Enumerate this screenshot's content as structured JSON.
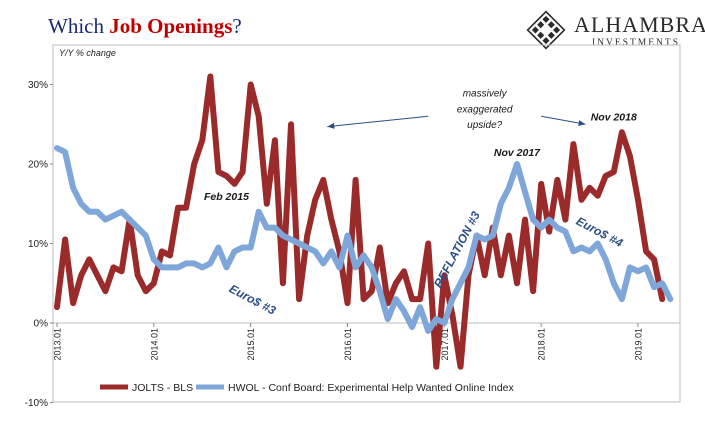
{
  "header": {
    "title_prefix": "Which ",
    "title_highlight": "Job Openings",
    "title_suffix": "?",
    "logo_word": "ALHAMBRA",
    "logo_sub": "INVESTMENTS"
  },
  "chart_data": {
    "type": "line",
    "subtitle": "Y/Y % change",
    "ylim": [
      -10,
      35
    ],
    "yticks": [
      -10,
      0,
      10,
      20,
      30
    ],
    "ytick_labels": [
      "-10%",
      "0%",
      "10%",
      "20%",
      "30%"
    ],
    "x_start_month": "2013-01",
    "xticks": [
      {
        "label": "2013.01",
        "month_index": 0
      },
      {
        "label": "2014.01",
        "month_index": 12
      },
      {
        "label": "2015.01",
        "month_index": 24
      },
      {
        "label": "2016.01",
        "month_index": 36
      },
      {
        "label": "2017.01",
        "month_index": 48
      },
      {
        "label": "2018.01",
        "month_index": 60
      },
      {
        "label": "2019.01",
        "month_index": 72
      }
    ],
    "grid": false,
    "legend_position": "bottom",
    "series": [
      {
        "name": "JOLTS - BLS",
        "color": "#9b2b2b",
        "values": [
          2.0,
          10.5,
          2.5,
          6.0,
          8.0,
          6.0,
          4.0,
          7.0,
          6.5,
          13.0,
          6.0,
          4.0,
          5.0,
          9.0,
          8.5,
          14.5,
          14.5,
          20.0,
          23.0,
          31.0,
          19.0,
          18.5,
          17.5,
          19.0,
          30.0,
          26.0,
          15.0,
          23.0,
          5.0,
          25.0,
          3.0,
          11.0,
          15.5,
          18.0,
          13.0,
          9.0,
          2.5,
          18.0,
          3.0,
          4.0,
          9.5,
          2.5,
          5.0,
          6.5,
          3.0,
          3.0,
          10.0,
          -5.5,
          6.0,
          1.0,
          -5.5,
          6.0,
          11.0,
          6.0,
          12.0,
          6.0,
          11.0,
          5.0,
          13.0,
          4.0,
          17.5,
          11.5,
          18.0,
          13.0,
          22.5,
          15.5,
          17.0,
          16.0,
          18.5,
          19.0,
          24.0,
          21.0,
          15.5,
          9.0,
          8.0,
          3.0
        ]
      },
      {
        "name": "HWOL - Conf Board: Experimental Help Wanted Online Index",
        "color": "#7ea6d9",
        "values": [
          22.0,
          21.5,
          17.0,
          15.0,
          14.0,
          14.0,
          13.0,
          13.5,
          14.0,
          13.0,
          12.0,
          11.0,
          8.0,
          7.0,
          7.0,
          7.0,
          7.5,
          7.5,
          7.0,
          7.5,
          9.5,
          7.0,
          9.0,
          9.5,
          9.5,
          14.0,
          12.0,
          12.0,
          11.0,
          10.5,
          10.0,
          9.5,
          9.0,
          7.5,
          9.0,
          7.0,
          11.0,
          7.0,
          8.5,
          7.0,
          4.0,
          0.5,
          3.0,
          1.5,
          -0.5,
          2.0,
          -1.0,
          0.5,
          0.0,
          3.0,
          5.0,
          7.0,
          11.0,
          10.5,
          11.0,
          15.0,
          17.0,
          20.0,
          16.5,
          13.0,
          12.0,
          13.0,
          12.0,
          11.5,
          9.0,
          9.5,
          9.0,
          10.0,
          8.0,
          5.0,
          3.0,
          7.0,
          6.5,
          7.0,
          4.5,
          5.0,
          3.0
        ]
      }
    ],
    "annotations": [
      {
        "text": "massively",
        "month": 53,
        "y": 28.5,
        "style": "italic"
      },
      {
        "text": "exaggerated",
        "month": 53,
        "y": 26.5,
        "style": "italic"
      },
      {
        "text": "upside?",
        "month": 53,
        "y": 24.5,
        "style": "italic"
      },
      {
        "text": "Feb 2015",
        "month": 21,
        "y": 15.5,
        "style": "bold-italic"
      },
      {
        "text": "Nov 2017",
        "month": 57,
        "y": 21.0,
        "style": "bold-italic"
      },
      {
        "text": "Nov 2018",
        "month": 69,
        "y": 25.5,
        "style": "bold-italic"
      },
      {
        "text": "Euro$ #3",
        "month": 24,
        "y": 2.5,
        "style": "label-rot"
      },
      {
        "text": "REFLATION #3",
        "month": 50,
        "y": 9.0,
        "style": "label-rot-steep"
      },
      {
        "text": "Euro$ #4",
        "month": 67,
        "y": 11.0,
        "style": "label-rot"
      }
    ],
    "arrows": [
      {
        "from_month": 46,
        "from_y": 26.0,
        "to_month": 33.5,
        "to_y": 24.7
      },
      {
        "from_month": 60,
        "from_y": 26.0,
        "to_month": 65.5,
        "to_y": 25.0
      }
    ]
  }
}
